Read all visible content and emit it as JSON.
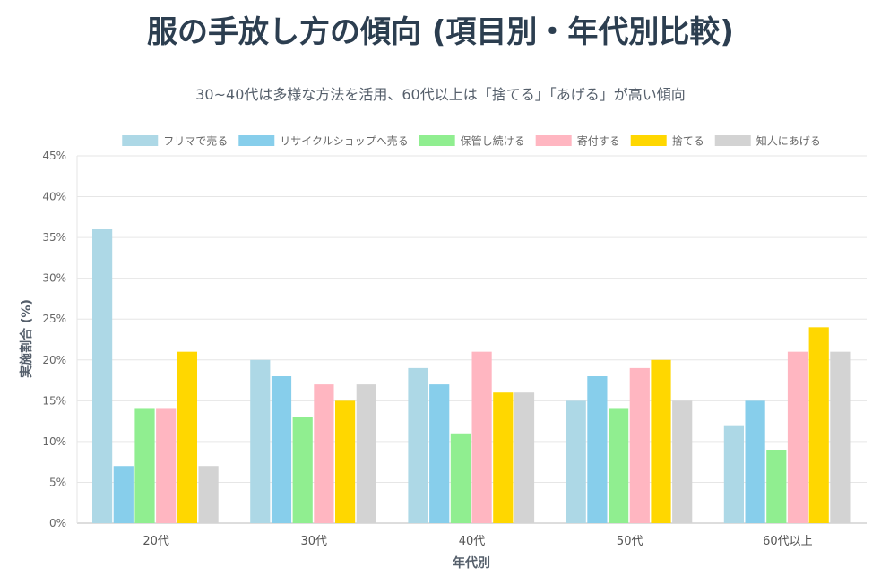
{
  "title": "服の手放し方の傾向 (項目別・年代別比較)",
  "subtitle": "30~40代は多様な方法を活用、60代以上は「捨てる」「あげる」が高い傾向",
  "chart_data": {
    "type": "bar",
    "categories": [
      "20代",
      "30代",
      "40代",
      "50代",
      "60代以上"
    ],
    "series": [
      {
        "name": "フリマで売る",
        "color": "#add8e6",
        "values": [
          36,
          20,
          19,
          15,
          12
        ]
      },
      {
        "name": "リサイクルショップへ売る",
        "color": "#87ceeb",
        "values": [
          7,
          18,
          17,
          18,
          15
        ]
      },
      {
        "name": "保管し続ける",
        "color": "#90ee90",
        "values": [
          14,
          13,
          11,
          14,
          9
        ]
      },
      {
        "name": "寄付する",
        "color": "#ffb6c1",
        "values": [
          14,
          17,
          21,
          19,
          21
        ]
      },
      {
        "name": "捨てる",
        "color": "#ffd700",
        "values": [
          21,
          15,
          16,
          20,
          24
        ]
      },
      {
        "name": "知人にあげる",
        "color": "#d3d3d3",
        "values": [
          7,
          17,
          16,
          15,
          21
        ]
      }
    ],
    "xlabel": "年代別",
    "ylabel": "実施割合 (%)",
    "ylim": [
      0,
      45
    ],
    "yticks": [
      "0%",
      "5%",
      "10%",
      "15%",
      "20%",
      "25%",
      "30%",
      "35%",
      "40%",
      "45%"
    ],
    "ytick_values": [
      0,
      5,
      10,
      15,
      20,
      25,
      30,
      35,
      40,
      45
    ],
    "grid": true,
    "legend_position": "top"
  }
}
